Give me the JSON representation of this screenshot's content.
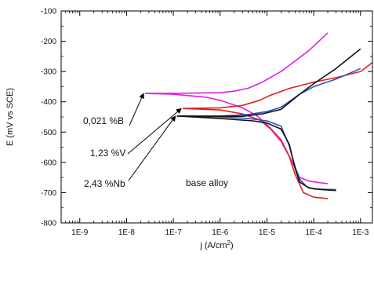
{
  "chart_data": {
    "type": "line",
    "xscale": "log",
    "xlabel": "j (A/cm",
    "xlabel_sup": "2",
    "xlabel_close": ")",
    "ylabel": "E (mV vs SCE)",
    "xlim": [
      4e-10,
      0.0018
    ],
    "ylim": [
      -800,
      -100
    ],
    "xticks": [
      {
        "value": 1e-09,
        "label": "1E-9"
      },
      {
        "value": 1e-08,
        "label": "1E-8"
      },
      {
        "value": 1e-07,
        "label": "1E-7"
      },
      {
        "value": 1e-06,
        "label": "1E-6"
      },
      {
        "value": 1e-05,
        "label": "1E-5"
      },
      {
        "value": 0.0001,
        "label": "1E-4"
      },
      {
        "value": 0.001,
        "label": "1E-3"
      }
    ],
    "yticks": [
      {
        "value": -100,
        "label": "-100"
      },
      {
        "value": -200,
        "label": "-200"
      },
      {
        "value": -300,
        "label": "-300"
      },
      {
        "value": -400,
        "label": "-400"
      },
      {
        "value": -500,
        "label": "-500"
      },
      {
        "value": -600,
        "label": "-600"
      },
      {
        "value": -700,
        "label": "-700"
      },
      {
        "value": -800,
        "label": "-800"
      }
    ],
    "series": [
      {
        "name": "0,021 %B",
        "color": "#e020e0",
        "branches": [
          [
            [
              2.5e-08,
              -372
            ],
            [
              1e-07,
              -372
            ],
            [
              1e-06,
              -370
            ],
            [
              2e-06,
              -365
            ],
            [
              4e-06,
              -355
            ],
            [
              8e-06,
              -335
            ],
            [
              2e-05,
              -300
            ],
            [
              4e-05,
              -265
            ],
            [
              8e-05,
              -230
            ],
            [
              0.0002,
              -172
            ]
          ],
          [
            [
              2.5e-08,
              -372
            ],
            [
              1e-07,
              -375
            ],
            [
              5e-07,
              -385
            ],
            [
              1e-06,
              -395
            ],
            [
              3e-06,
              -420
            ],
            [
              6e-06,
              -445
            ],
            [
              1e-05,
              -475
            ],
            [
              2e-05,
              -525
            ],
            [
              3.5e-05,
              -600
            ],
            [
              5e-05,
              -650
            ],
            [
              8e-05,
              -662
            ],
            [
              0.00015,
              -668
            ],
            [
              0.0002,
              -670
            ]
          ]
        ]
      },
      {
        "name": "1,23 %V",
        "color": "#e02020",
        "branches": [
          [
            [
              1.6e-07,
              -422
            ],
            [
              1e-06,
              -420
            ],
            [
              3e-06,
              -412
            ],
            [
              7e-06,
              -395
            ],
            [
              1.2e-05,
              -378
            ],
            [
              3e-05,
              -356
            ],
            [
              0.0001,
              -335
            ],
            [
              0.0003,
              -320
            ],
            [
              0.001,
              -300
            ],
            [
              0.0018,
              -270
            ]
          ],
          [
            [
              1.6e-07,
              -422
            ],
            [
              1e-06,
              -427
            ],
            [
              3e-06,
              -440
            ],
            [
              7e-06,
              -460
            ],
            [
              1.2e-05,
              -490
            ],
            [
              2e-05,
              -530
            ],
            [
              3e-05,
              -580
            ],
            [
              4e-05,
              -640
            ],
            [
              6e-05,
              -700
            ],
            [
              0.0001,
              -715
            ],
            [
              0.0002,
              -720
            ]
          ]
        ]
      },
      {
        "name": "2,43 %Nb",
        "color": "#3050c0",
        "branches": [
          [
            [
              1.2e-07,
              -447
            ],
            [
              1e-06,
              -447
            ],
            [
              4e-06,
              -442
            ],
            [
              1e-05,
              -432
            ],
            [
              2e-05,
              -418
            ],
            [
              5e-05,
              -375
            ],
            [
              0.0001,
              -350
            ],
            [
              0.0003,
              -325
            ],
            [
              0.001,
              -290
            ]
          ],
          [
            [
              1.2e-07,
              -447
            ],
            [
              1e-06,
              -450
            ],
            [
              4e-06,
              -455
            ],
            [
              1e-05,
              -463
            ],
            [
              2e-05,
              -480
            ],
            [
              3e-05,
              -545
            ],
            [
              4e-05,
              -615
            ],
            [
              5e-05,
              -655
            ],
            [
              7e-05,
              -680
            ],
            [
              0.0001,
              -688
            ],
            [
              0.0003,
              -690
            ]
          ]
        ]
      },
      {
        "name": "base alloy",
        "color": "#111111",
        "branches": [
          [
            [
              1.2e-07,
              -447
            ],
            [
              1e-06,
              -448
            ],
            [
              3e-06,
              -448
            ],
            [
              8e-06,
              -440
            ],
            [
              2e-05,
              -425
            ],
            [
              5e-05,
              -375
            ],
            [
              0.0001,
              -340
            ],
            [
              0.0003,
              -290
            ],
            [
              0.001,
              -225
            ]
          ],
          [
            [
              1.2e-07,
              -447
            ],
            [
              1e-06,
              -455
            ],
            [
              5e-06,
              -463
            ],
            [
              1e-05,
              -470
            ],
            [
              2e-05,
              -490
            ],
            [
              3e-05,
              -540
            ],
            [
              4e-05,
              -620
            ],
            [
              5e-05,
              -665
            ],
            [
              8e-05,
              -685
            ],
            [
              0.00015,
              -690
            ],
            [
              0.0003,
              -693
            ]
          ]
        ]
      }
    ],
    "annotations": [
      {
        "text": "0,021 %B",
        "ref": "0,021 %B"
      },
      {
        "text": "1,23 %V",
        "ref": "1,23 %V"
      },
      {
        "text": "2,43 %Nb",
        "ref": "2,43 %Nb"
      },
      {
        "text": "base alloy",
        "ref": "base alloy"
      }
    ]
  }
}
